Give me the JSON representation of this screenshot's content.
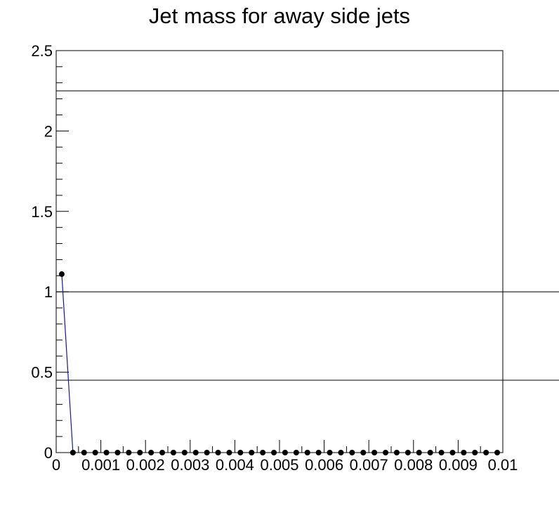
{
  "chart_data": {
    "type": "line",
    "title": "Jet mass for away side jets",
    "xlabel": "",
    "ylabel": "",
    "xlim": [
      0,
      0.01
    ],
    "ylim": [
      0,
      2.5
    ],
    "x_ticks": [
      0,
      0.001,
      0.002,
      0.003,
      0.004,
      0.005,
      0.006,
      0.007,
      0.008,
      0.009,
      0.01
    ],
    "x_tick_labels": [
      "0",
      "0.001",
      "0.002",
      "0.003",
      "0.004",
      "0.005",
      "0.006",
      "0.007",
      "0.008",
      "0.009",
      "0.01"
    ],
    "y_ticks": [
      0,
      0.5,
      1,
      1.5,
      2,
      2.5
    ],
    "y_tick_labels": [
      "0",
      "0.5",
      "1",
      "1.5",
      "2",
      "2.5"
    ],
    "reference_lines_y": [
      0.45,
      1.0,
      2.25
    ],
    "grid": false,
    "colors": {
      "line": "#1a1a8c",
      "marker": "#000000",
      "frame": "#000000"
    },
    "series": [
      {
        "x": [
          0.000125,
          0.000375,
          0.000625,
          0.000875,
          0.001125,
          0.001375,
          0.001625,
          0.001875,
          0.002125,
          0.002375,
          0.002625,
          0.002875,
          0.003125,
          0.003375,
          0.003625,
          0.003875,
          0.004125,
          0.004375,
          0.004625,
          0.004875,
          0.005125,
          0.005375,
          0.005625,
          0.005875,
          0.006125,
          0.006375,
          0.006625,
          0.006875,
          0.007125,
          0.007375,
          0.007625,
          0.007875,
          0.008125,
          0.008375,
          0.008625,
          0.008875,
          0.009125,
          0.009375,
          0.009625,
          0.009875
        ],
        "values": [
          1.11,
          0,
          0,
          0,
          0,
          0,
          0,
          0,
          0,
          0,
          0,
          0,
          0,
          0,
          0,
          0,
          0,
          0,
          0,
          0,
          0,
          0,
          0,
          0,
          0,
          0,
          0,
          0,
          0,
          0,
          0,
          0,
          0,
          0,
          0,
          0,
          0,
          0,
          0,
          0
        ]
      }
    ]
  }
}
